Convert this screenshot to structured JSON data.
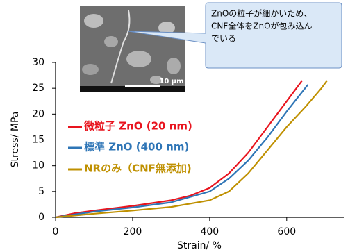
{
  "chart_data": {
    "type": "line",
    "xlabel": "Strain/ %",
    "ylabel": "Stress/ MPa",
    "xlim": [
      0,
      750
    ],
    "ylim": [
      0,
      30
    ],
    "xticks": [
      0,
      200,
      400,
      600
    ],
    "yticks": [
      0,
      5,
      10,
      15,
      20,
      25,
      30
    ],
    "series": [
      {
        "name": "微粒子 ZnO (20 nm)",
        "color": "#e8141e",
        "x": [
          0,
          50,
          100,
          200,
          300,
          350,
          400,
          450,
          500,
          550,
          600,
          640
        ],
        "values": [
          0,
          0.8,
          1.3,
          2.2,
          3.3,
          4.2,
          5.7,
          8.5,
          12.5,
          17.5,
          22.5,
          26.5
        ]
      },
      {
        "name": "標準 ZnO (400 nm)",
        "color": "#2e75b6",
        "x": [
          0,
          100,
          200,
          300,
          400,
          450,
          500,
          550,
          600,
          655
        ],
        "values": [
          0,
          1.1,
          1.9,
          2.9,
          5,
          7.5,
          11,
          15.5,
          20.5,
          25.7
        ]
      },
      {
        "name": "NRのみ（CNF無添加)",
        "color": "#bf9000",
        "x": [
          0,
          100,
          200,
          300,
          400,
          450,
          500,
          550,
          600,
          650,
          690,
          705
        ],
        "values": [
          0,
          0.7,
          1.3,
          2,
          3.3,
          5,
          8.5,
          13,
          17.5,
          21.5,
          25,
          26.5
        ]
      }
    ],
    "annotations": [
      "ZnOの粒子が細かいため、",
      "CNF全体をZnOが包み込ん",
      "でいる"
    ],
    "inset_scale_label": "10 μm"
  }
}
